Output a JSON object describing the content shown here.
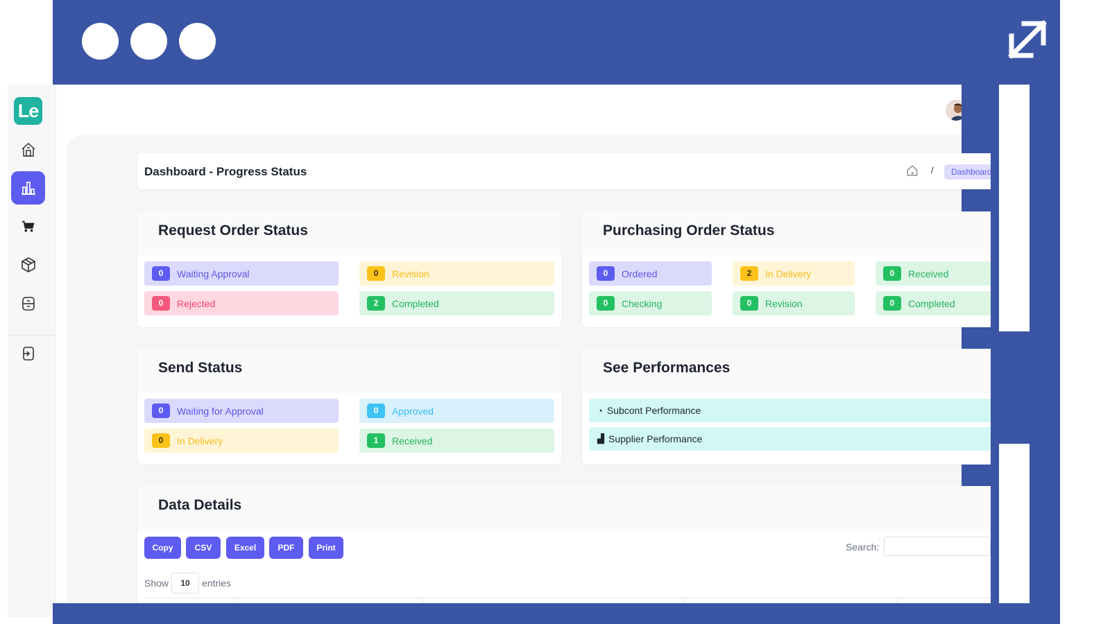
{
  "header": {
    "page_title": "Dashboard - Progress Status",
    "breadcrumb_separator": "/",
    "breadcrumb_current": "Dashboard"
  },
  "sidebar": {
    "logo_text": "Le",
    "items": [
      {
        "icon": "home-icon"
      },
      {
        "icon": "bar-chart-icon",
        "active": true
      },
      {
        "icon": "cart-icon"
      },
      {
        "icon": "box-icon"
      },
      {
        "icon": "archive-icon"
      },
      {
        "icon": "logout-icon"
      }
    ]
  },
  "request_order": {
    "title": "Request Order Status",
    "items": [
      {
        "count": "0",
        "label": "Waiting Approval",
        "color": "#5e5cf0"
      },
      {
        "count": "0",
        "label": "Revision",
        "color": "#fcc219"
      },
      {
        "count": "0",
        "label": "Rejected",
        "color": "#f5587d"
      },
      {
        "count": "2",
        "label": "Completed",
        "color": "#23c062"
      }
    ]
  },
  "purchasing_order": {
    "title": "Purchasing Order Status",
    "items": [
      {
        "count": "0",
        "label": "Ordered"
      },
      {
        "count": "2",
        "label": "In Delivery"
      },
      {
        "count": "0",
        "label": "Received"
      },
      {
        "count": "0",
        "label": "Checking"
      },
      {
        "count": "0",
        "label": "Revision"
      },
      {
        "count": "0",
        "label": "Completed"
      }
    ]
  },
  "send_status": {
    "title": "Send Status",
    "items": [
      {
        "count": "0",
        "label": "Waiting for Approval"
      },
      {
        "count": "0",
        "label": "Approved"
      },
      {
        "count": "0",
        "label": "In Delivery"
      },
      {
        "count": "1",
        "label": "Received"
      }
    ]
  },
  "performances": {
    "title": "See Performances",
    "items": [
      {
        "label": "Subcont Performance",
        "icon": "pie-chart-icon"
      },
      {
        "label": "Supplier Performance",
        "icon": "bar-chart-icon"
      }
    ]
  },
  "data_details": {
    "title": "Data Details",
    "buttons": [
      "Copy",
      "CSV",
      "Excel",
      "PDF",
      "Print"
    ],
    "search_label": "Search:",
    "show_label": "Show",
    "entries_value": "10",
    "entries_label": "entries"
  }
}
